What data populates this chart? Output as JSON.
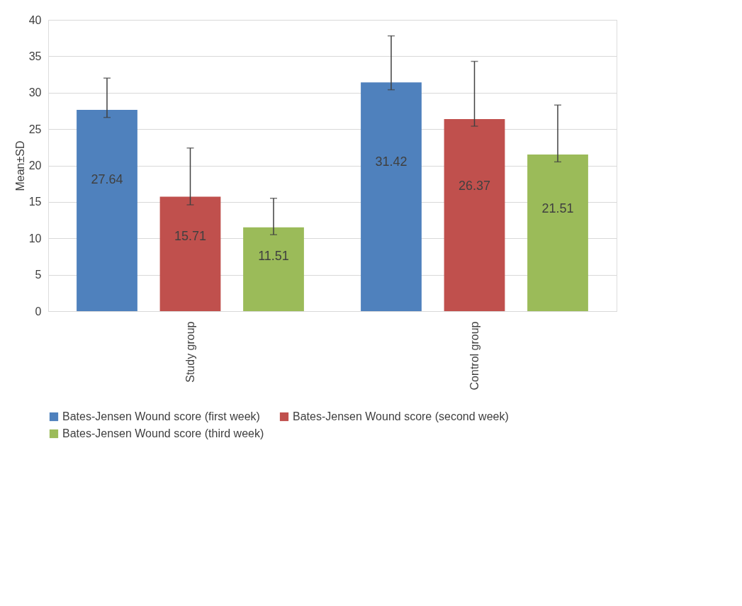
{
  "chart_data": {
    "type": "bar",
    "ylabel": "Mean±SD",
    "categories": [
      "Study group",
      "Control group"
    ],
    "series": [
      {
        "name": "Bates-Jensen Wound score (first week)",
        "color": "#4f81bd",
        "values": [
          27.64,
          31.42
        ],
        "errors": [
          [
            26.6,
            32.0
          ],
          [
            30.4,
            37.8
          ]
        ]
      },
      {
        "name": "Bates-Jensen Wound score (second week)",
        "color": "#c0504d",
        "values": [
          15.71,
          26.37
        ],
        "errors": [
          [
            14.6,
            22.4
          ],
          [
            25.4,
            34.3
          ]
        ]
      },
      {
        "name": "Bates-Jensen Wound score (third week)",
        "color": "#9bbb59",
        "values": [
          11.51,
          21.51
        ],
        "errors": [
          [
            10.5,
            15.5
          ],
          [
            20.5,
            28.3
          ]
        ]
      }
    ],
    "ylim": [
      0,
      40
    ],
    "yticks": [
      0,
      5,
      10,
      15,
      20,
      25,
      30,
      35,
      40
    ],
    "grid": "y",
    "legend": "bottom",
    "data_labels": true
  }
}
